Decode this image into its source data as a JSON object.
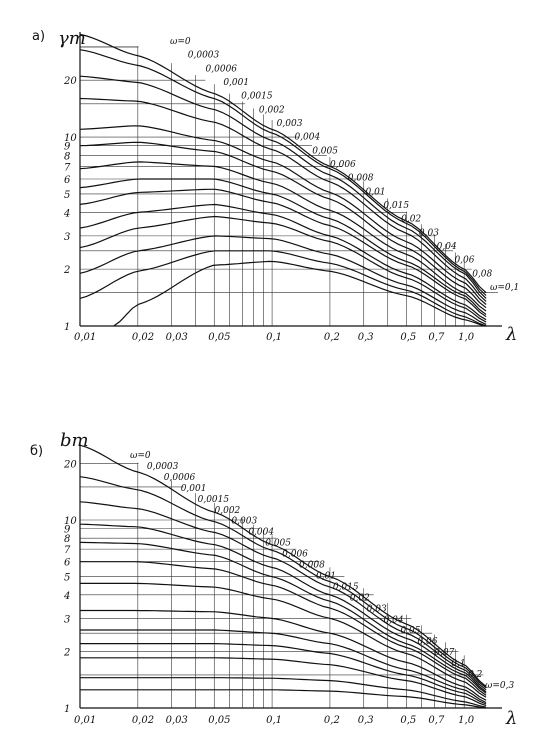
{
  "chart_data": [
    {
      "panel": "a)",
      "type": "line",
      "ylabel": "γm",
      "xlabel": "λ",
      "xscale": "log",
      "yscale": "log",
      "xlim": [
        0.01,
        1.5
      ],
      "ylim": [
        1,
        36
      ],
      "x_ticks": [
        "0,01",
        "0,02",
        "0,03",
        "0,05",
        "0,1",
        "0,2",
        "0,3",
        "0,5",
        "0,7",
        "1,0"
      ],
      "x_tick_values": [
        0.01,
        0.02,
        0.03,
        0.05,
        0.1,
        0.2,
        0.3,
        0.5,
        0.7,
        1.0
      ],
      "y_ticks": [
        "1",
        "2",
        "3",
        "4",
        "5",
        "6",
        "7",
        "8",
        "9",
        "10",
        "20"
      ],
      "y_tick_values": [
        1,
        2,
        3,
        4,
        5,
        6,
        7,
        8,
        9,
        10,
        20
      ],
      "series_labels": [
        "ω=0",
        "0,0003",
        "0,0006",
        "0,001",
        "0,0015",
        "0,002",
        "0,003",
        "0,004",
        "0,005",
        "0,006",
        "0,008",
        "0,01",
        "0,015",
        "0,02",
        "0,03",
        "0,04",
        "0,06",
        "0,08",
        "ω=0,1"
      ],
      "series": [
        {
          "name": "ω=0",
          "x": [
            0.01,
            0.02,
            0.05,
            0.1,
            0.2,
            0.5,
            1.0,
            1.3
          ],
          "y": [
            35,
            27,
            17,
            11,
            7,
            3.6,
            2.0,
            1.5
          ]
        },
        {
          "name": "0,0003",
          "x": [
            0.01,
            0.02,
            0.05,
            0.1,
            0.2,
            0.5,
            1.0,
            1.3
          ],
          "y": [
            29,
            24,
            16,
            10.5,
            6.8,
            3.5,
            1.95,
            1.45
          ]
        },
        {
          "name": "0,001",
          "x": [
            0.01,
            0.02,
            0.05,
            0.1,
            0.2,
            0.5,
            1.0,
            1.3
          ],
          "y": [
            21,
            19.5,
            14,
            9.6,
            6.3,
            3.3,
            1.9,
            1.4
          ]
        },
        {
          "name": "0,002",
          "x": [
            0.01,
            0.02,
            0.05,
            0.1,
            0.2,
            0.5,
            1.0,
            1.3
          ],
          "y": [
            16,
            15.5,
            12,
            8.6,
            5.8,
            3.1,
            1.8,
            1.35
          ]
        },
        {
          "name": "0,004",
          "x": [
            0.01,
            0.02,
            0.05,
            0.1,
            0.2,
            0.5,
            1.0,
            1.3
          ],
          "y": [
            11,
            11.5,
            9.6,
            7.4,
            5.1,
            2.8,
            1.7,
            1.3
          ]
        },
        {
          "name": "0,006",
          "x": [
            0.01,
            0.02,
            0.05,
            0.1,
            0.2,
            0.5,
            1.0,
            1.3
          ],
          "y": [
            9,
            9.4,
            8.4,
            6.6,
            4.7,
            2.6,
            1.6,
            1.25
          ]
        },
        {
          "name": "0,01",
          "x": [
            0.01,
            0.02,
            0.05,
            0.1,
            0.2,
            0.5,
            1.0,
            1.3
          ],
          "y": [
            6.8,
            7.4,
            7.0,
            5.7,
            4.1,
            2.4,
            1.5,
            1.2
          ]
        },
        {
          "name": "0,015",
          "x": [
            0.01,
            0.02,
            0.05,
            0.1,
            0.2,
            0.5,
            1.0,
            1.3
          ],
          "y": [
            5.4,
            6.0,
            6.0,
            5.0,
            3.7,
            2.2,
            1.45,
            1.15
          ]
        },
        {
          "name": "0,02",
          "x": [
            0.01,
            0.02,
            0.05,
            0.1,
            0.2,
            0.5,
            1.0,
            1.3
          ],
          "y": [
            4.4,
            5.1,
            5.3,
            4.5,
            3.4,
            2.1,
            1.4,
            1.12
          ]
        },
        {
          "name": "0,03",
          "x": [
            0.01,
            0.02,
            0.05,
            0.1,
            0.2,
            0.5,
            1.0,
            1.3
          ],
          "y": [
            3.3,
            4.0,
            4.4,
            3.9,
            3.0,
            1.9,
            1.3,
            1.08
          ]
        },
        {
          "name": "0,04",
          "x": [
            0.01,
            0.02,
            0.05,
            0.1,
            0.2,
            0.5,
            1.0,
            1.3
          ],
          "y": [
            2.6,
            3.3,
            3.8,
            3.5,
            2.8,
            1.8,
            1.25,
            1.05
          ]
        },
        {
          "name": "0,06",
          "x": [
            0.01,
            0.02,
            0.05,
            0.1,
            0.2,
            0.5,
            1.0,
            1.3
          ],
          "y": [
            1.9,
            2.5,
            3.0,
            2.9,
            2.4,
            1.65,
            1.18,
            1.02
          ]
        },
        {
          "name": "0,08",
          "x": [
            0.01,
            0.02,
            0.05,
            0.1,
            0.2,
            0.5,
            1.0,
            1.3
          ],
          "y": [
            1.4,
            1.95,
            2.5,
            2.5,
            2.15,
            1.55,
            1.12,
            1.0
          ]
        },
        {
          "name": "ω=0,1",
          "x": [
            0.015,
            0.02,
            0.05,
            0.1,
            0.2,
            0.5,
            1.0,
            1.3
          ],
          "y": [
            1.0,
            1.3,
            2.1,
            2.2,
            1.95,
            1.45,
            1.08,
            1.0
          ]
        }
      ]
    },
    {
      "panel": "б)",
      "type": "line",
      "ylabel": "bm",
      "xlabel": "λ",
      "xscale": "log",
      "yscale": "log",
      "xlim": [
        0.01,
        1.5
      ],
      "ylim": [
        1,
        26
      ],
      "x_ticks": [
        "0,01",
        "0,02",
        "0,03",
        "0,05",
        "0,1",
        "0,2",
        "0,3",
        "0,5",
        "0,7",
        "1,0"
      ],
      "x_tick_values": [
        0.01,
        0.02,
        0.03,
        0.05,
        0.1,
        0.2,
        0.3,
        0.5,
        0.7,
        1.0
      ],
      "y_ticks": [
        "1",
        "2",
        "3",
        "4",
        "5",
        "6",
        "7",
        "8",
        "9",
        "10",
        "20"
      ],
      "y_tick_values": [
        1,
        2,
        3,
        4,
        5,
        6,
        7,
        8,
        9,
        10,
        20
      ],
      "series_labels": [
        "ω=0",
        "0,0003",
        "0,0006",
        "0,001",
        "0,0015",
        "0,002",
        "0,003",
        "0,004",
        "0,005",
        "0,006",
        "0,008",
        "0,01",
        "0,015",
        "0,02",
        "0,03",
        "0,04",
        "0,05",
        "0,06",
        "0,07",
        "0,1",
        "0,2",
        "ω=0,3"
      ],
      "series": [
        {
          "name": "ω=0",
          "x": [
            0.01,
            0.02,
            0.05,
            0.1,
            0.2,
            0.5,
            1.0,
            1.3
          ],
          "y": [
            25,
            18,
            11,
            7.4,
            5.0,
            2.8,
            1.7,
            1.3
          ]
        },
        {
          "name": "0,0006",
          "x": [
            0.01,
            0.02,
            0.05,
            0.1,
            0.2,
            0.5,
            1.0,
            1.3
          ],
          "y": [
            17,
            14.5,
            9.8,
            6.9,
            4.7,
            2.65,
            1.65,
            1.28
          ]
        },
        {
          "name": "0,0015",
          "x": [
            0.01,
            0.02,
            0.05,
            0.1,
            0.2,
            0.5,
            1.0,
            1.3
          ],
          "y": [
            12.5,
            11.5,
            8.6,
            6.3,
            4.4,
            2.5,
            1.6,
            1.25
          ]
        },
        {
          "name": "0,003",
          "x": [
            0.01,
            0.02,
            0.05,
            0.1,
            0.2,
            0.5,
            1.0,
            1.3
          ],
          "y": [
            9.5,
            9.2,
            7.4,
            5.6,
            4.0,
            2.35,
            1.55,
            1.22
          ]
        },
        {
          "name": "0,005",
          "x": [
            0.01,
            0.02,
            0.05,
            0.1,
            0.2,
            0.5,
            1.0,
            1.3
          ],
          "y": [
            7.6,
            7.5,
            6.5,
            5.0,
            3.7,
            2.2,
            1.5,
            1.2
          ]
        },
        {
          "name": "0,008",
          "x": [
            0.01,
            0.02,
            0.05,
            0.1,
            0.2,
            0.5,
            1.0,
            1.3
          ],
          "y": [
            6.0,
            6.0,
            5.5,
            4.5,
            3.4,
            2.1,
            1.45,
            1.17
          ]
        },
        {
          "name": "0,015",
          "x": [
            0.01,
            0.02,
            0.05,
            0.1,
            0.2,
            0.5,
            1.0,
            1.3
          ],
          "y": [
            4.6,
            4.6,
            4.4,
            3.8,
            3.0,
            1.95,
            1.38,
            1.14
          ]
        },
        {
          "name": "0,03",
          "x": [
            0.01,
            0.02,
            0.05,
            0.1,
            0.2,
            0.5,
            1.0,
            1.3
          ],
          "y": [
            3.3,
            3.3,
            3.25,
            3.0,
            2.5,
            1.75,
            1.3,
            1.1
          ]
        },
        {
          "name": "0,05",
          "x": [
            0.01,
            0.02,
            0.05,
            0.1,
            0.2,
            0.5,
            1.0,
            1.3
          ],
          "y": [
            2.6,
            2.6,
            2.6,
            2.5,
            2.2,
            1.6,
            1.25,
            1.07
          ]
        },
        {
          "name": "0,07",
          "x": [
            0.01,
            0.02,
            0.05,
            0.1,
            0.2,
            0.5,
            1.0,
            1.3
          ],
          "y": [
            2.2,
            2.2,
            2.2,
            2.15,
            1.95,
            1.5,
            1.2,
            1.05
          ]
        },
        {
          "name": "0,1",
          "x": [
            0.01,
            0.02,
            0.05,
            0.1,
            0.2,
            0.5,
            1.0,
            1.3
          ],
          "y": [
            1.85,
            1.85,
            1.85,
            1.82,
            1.7,
            1.4,
            1.15,
            1.03
          ]
        },
        {
          "name": "0,2",
          "x": [
            0.01,
            0.02,
            0.05,
            0.1,
            0.2,
            0.5,
            1.0,
            1.3
          ],
          "y": [
            1.45,
            1.45,
            1.45,
            1.44,
            1.4,
            1.25,
            1.08,
            1.01
          ]
        },
        {
          "name": "ω=0,3",
          "x": [
            0.01,
            0.02,
            0.05,
            0.1,
            0.2,
            0.5,
            1.0,
            1.3
          ],
          "y": [
            1.25,
            1.25,
            1.25,
            1.25,
            1.23,
            1.15,
            1.04,
            1.0
          ]
        }
      ]
    }
  ]
}
